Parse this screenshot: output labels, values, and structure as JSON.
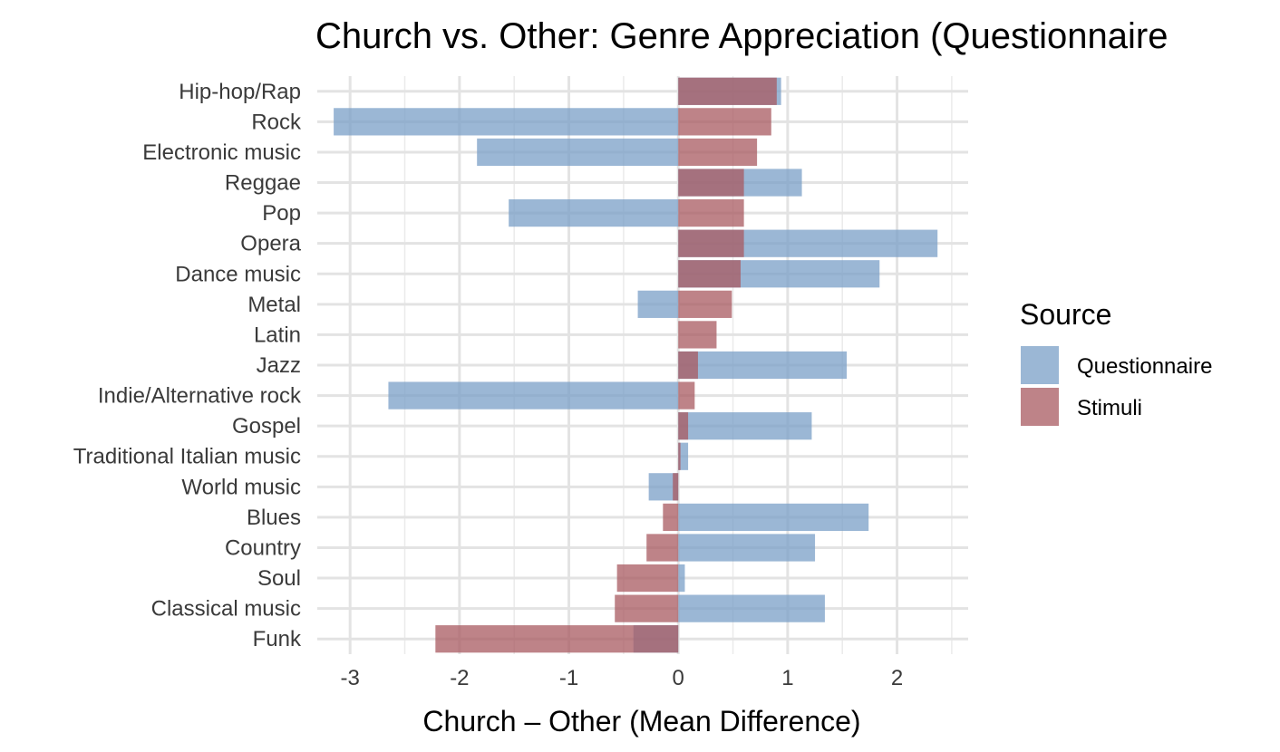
{
  "chart_data": {
    "type": "bar",
    "orientation": "horizontal",
    "title": "Church vs. Other: Genre Appreciation (Questionnaire",
    "xlabel": "Church – Other (Mean Difference)",
    "ylabel": "",
    "xlim": [
      -3.3,
      2.65
    ],
    "xticks": [
      -3,
      -2,
      -1,
      0,
      1,
      2
    ],
    "xtick_labels": [
      "-3",
      "-2",
      "-1",
      "0",
      "1",
      "2"
    ],
    "grid": true,
    "legend_position": "right",
    "legend_title": "Source",
    "categories": [
      "Hip-hop/Rap",
      "Rock",
      "Electronic music",
      "Reggae",
      "Pop",
      "Opera",
      "Dance music",
      "Metal",
      "Latin",
      "Jazz",
      "Indie/Alternative rock",
      "Gospel",
      "Traditional Italian music",
      "World music",
      "Blues",
      "Country",
      "Soul",
      "Classical music",
      "Funk"
    ],
    "series": [
      {
        "name": "Questionnaire",
        "color": "#7a9fc7",
        "values": [
          0.94,
          -3.15,
          -1.84,
          1.13,
          -1.55,
          2.37,
          1.84,
          -0.37,
          0.0,
          1.54,
          -2.65,
          1.22,
          0.09,
          -0.27,
          1.74,
          1.25,
          0.06,
          1.34,
          -0.41
        ]
      },
      {
        "name": "Stimuli",
        "color": "#a85a60",
        "values": [
          0.9,
          0.85,
          0.72,
          0.6,
          0.6,
          0.6,
          0.57,
          0.49,
          0.35,
          0.18,
          0.15,
          0.09,
          0.02,
          -0.05,
          -0.14,
          -0.29,
          -0.56,
          -0.58,
          -2.22
        ]
      }
    ]
  }
}
